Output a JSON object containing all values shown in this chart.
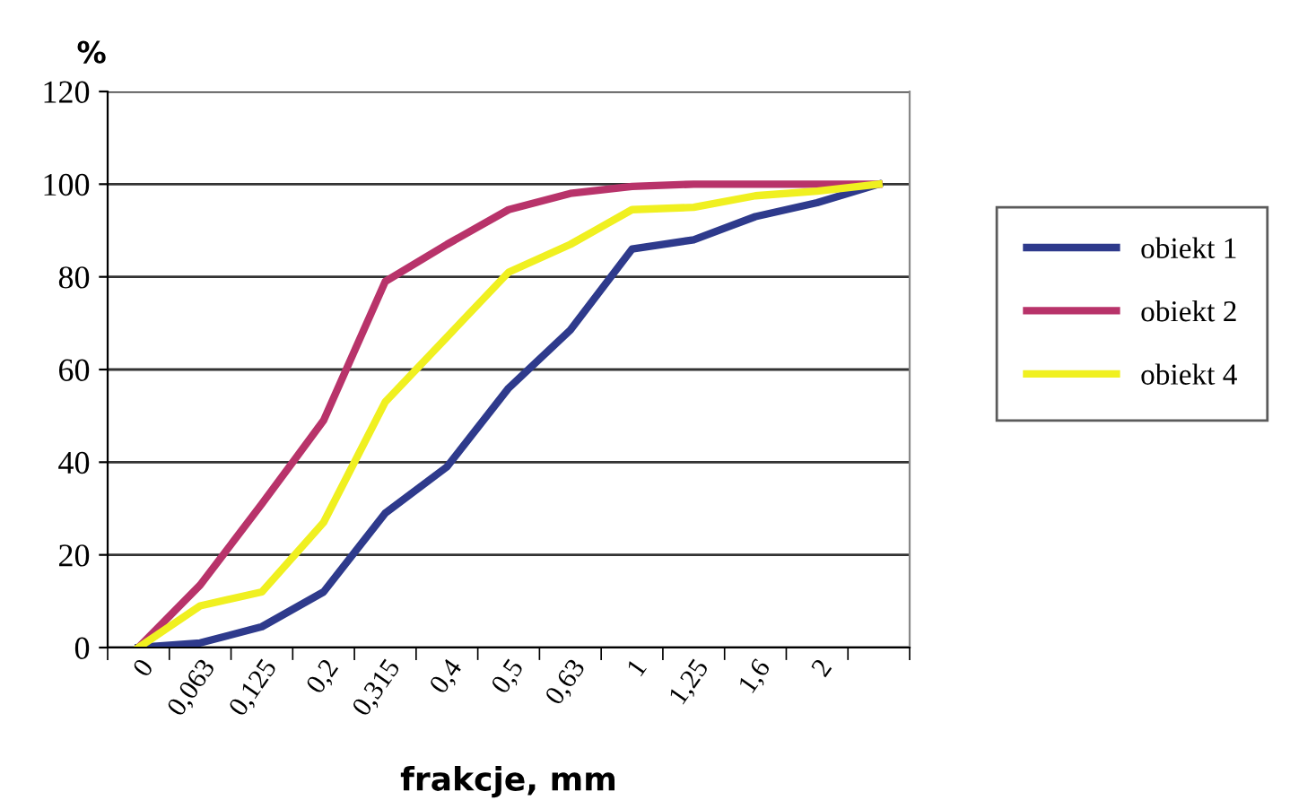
{
  "chart_data": {
    "type": "line",
    "ylabel": "%",
    "xlabel": "frakcje, mm",
    "categories": [
      "0",
      "0,063",
      "0,125",
      "0,2",
      "0,315",
      "0,4",
      "0,5",
      "0,63",
      "1",
      "1,25",
      "1,6",
      "2",
      null
    ],
    "series": [
      {
        "name": "obiekt 1",
        "color": "#2e3a8c",
        "values": [
          0,
          1,
          4.5,
          12,
          29,
          39,
          56,
          68.5,
          86,
          88,
          93,
          96,
          100
        ]
      },
      {
        "name": "obiekt 2",
        "color": "#b8336a",
        "values": [
          0,
          13.5,
          31,
          49,
          79,
          87,
          94.5,
          98,
          99.5,
          100,
          100,
          100,
          100
        ]
      },
      {
        "name": "obiekt 4",
        "color": "#f0f020",
        "values": [
          0,
          9,
          12,
          27,
          53,
          67,
          81,
          87,
          94.5,
          95,
          97.5,
          98.5,
          100
        ]
      }
    ],
    "ylim": [
      0,
      120
    ],
    "yticks": [
      0,
      20,
      40,
      60,
      80,
      100,
      120
    ],
    "grid": "y",
    "legend": "right",
    "marker": "none",
    "line_style": "solid"
  }
}
